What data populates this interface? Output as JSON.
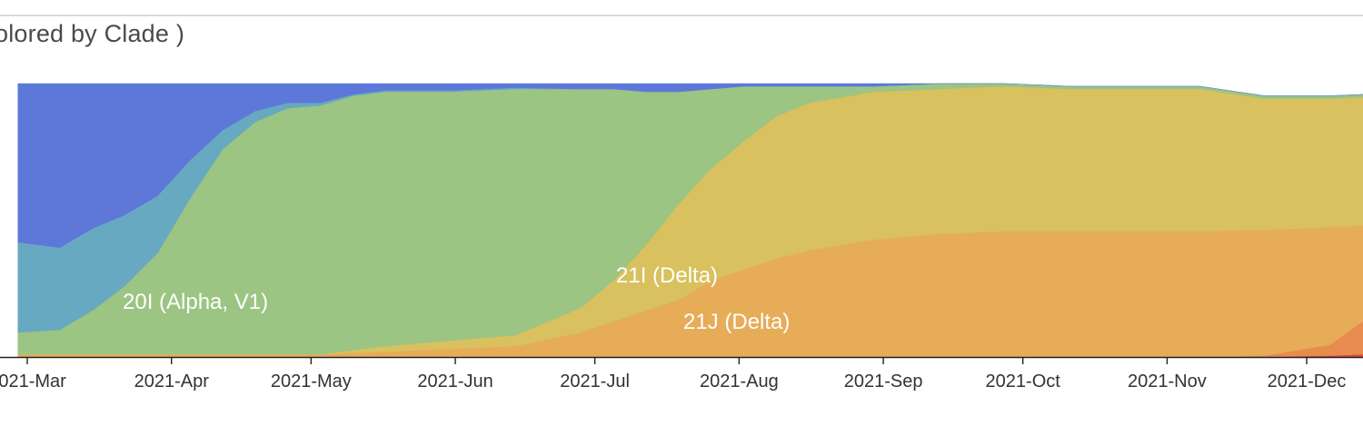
{
  "title": "olored by Clade )",
  "chart_data": {
    "type": "area",
    "stacked": true,
    "normalized": true,
    "title": "olored by Clade )",
    "xlabel": "",
    "ylabel": "",
    "ylim": [
      0,
      1
    ],
    "x": [
      "2021-02-27",
      "2021-03-08",
      "2021-03-15",
      "2021-03-22",
      "2021-03-29",
      "2021-04-05",
      "2021-04-12",
      "2021-04-19",
      "2021-04-26",
      "2021-05-03",
      "2021-05-10",
      "2021-05-17",
      "2021-05-31",
      "2021-06-14",
      "2021-06-28",
      "2021-07-05",
      "2021-07-12",
      "2021-07-19",
      "2021-07-26",
      "2021-08-02",
      "2021-08-09",
      "2021-08-16",
      "2021-08-30",
      "2021-09-13",
      "2021-09-27",
      "2021-10-11",
      "2021-10-25",
      "2021-11-08",
      "2021-11-22",
      "2021-12-06",
      "2021-12-13",
      "2021-12-20"
    ],
    "x_ticks": [
      "2021-Mar",
      "2021-Apr",
      "2021-May",
      "2021-Jun",
      "2021-Jul",
      "2021-Aug",
      "2021-Sep",
      "2021-Oct",
      "2021-Nov",
      "2021-Dec"
    ],
    "series": [
      {
        "name": "",
        "color": "#dc4e34",
        "values": [
          0,
          0,
          0,
          0,
          0,
          0,
          0,
          0,
          0,
          0,
          0,
          0,
          0,
          0,
          0,
          0,
          0,
          0,
          0,
          0,
          0,
          0,
          0,
          0,
          0,
          0,
          0,
          0,
          0,
          0.005,
          0.01,
          0.04
        ]
      },
      {
        "name": "",
        "color": "#e78b4f",
        "values": [
          0,
          0,
          0,
          0,
          0,
          0,
          0,
          0,
          0,
          0,
          0,
          0,
          0,
          0,
          0,
          0,
          0,
          0,
          0,
          0,
          0,
          0,
          0,
          0,
          0,
          0,
          0,
          0,
          0.005,
          0.04,
          0.12,
          0.16
        ]
      },
      {
        "name": "21J (Delta)",
        "color": "#e6ac58",
        "values": [
          0.01,
          0.01,
          0.01,
          0.01,
          0.01,
          0.01,
          0.01,
          0.01,
          0.01,
          0.01,
          0.015,
          0.02,
          0.03,
          0.04,
          0.09,
          0.13,
          0.17,
          0.21,
          0.28,
          0.32,
          0.36,
          0.39,
          0.43,
          0.45,
          0.46,
          0.46,
          0.46,
          0.46,
          0.46,
          0.43,
          0.35,
          0.31
        ]
      },
      {
        "name": "21I (Delta)",
        "color": "#d8c15e",
        "values": [
          0,
          0,
          0,
          0,
          0,
          0,
          0,
          0,
          0,
          0,
          0.01,
          0.02,
          0.03,
          0.04,
          0.09,
          0.15,
          0.24,
          0.35,
          0.41,
          0.47,
          0.52,
          0.54,
          0.54,
          0.53,
          0.53,
          0.52,
          0.52,
          0.52,
          0.48,
          0.47,
          0.47,
          0.45
        ]
      },
      {
        "name": "20I (Alpha, V1)",
        "color": "#9cc483",
        "values": [
          0.08,
          0.09,
          0.16,
          0.25,
          0.37,
          0.57,
          0.75,
          0.85,
          0.9,
          0.91,
          0.93,
          0.93,
          0.91,
          0.9,
          0.8,
          0.7,
          0.56,
          0.41,
          0.29,
          0.2,
          0.11,
          0.06,
          0.02,
          0.02,
          0.01,
          0.01,
          0.01,
          0.01,
          0.01,
          0.01,
          0.01,
          0.005
        ]
      },
      {
        "name": "",
        "color": "#68a9c2",
        "values": [
          0.33,
          0.3,
          0.3,
          0.26,
          0.21,
          0.14,
          0.07,
          0.04,
          0.02,
          0.01,
          0.005,
          0.005,
          0.005,
          0.005,
          0,
          0,
          0,
          0,
          0,
          0,
          0,
          0,
          0,
          0,
          0,
          0,
          0,
          0,
          0,
          0,
          0,
          0
        ]
      },
      {
        "name": "",
        "color": "#5d78d9",
        "values": [
          0.58,
          0.6,
          0.53,
          0.48,
          0.41,
          0.28,
          0.17,
          0.1,
          0.07,
          0.07,
          0.04,
          0.025,
          0.025,
          0.015,
          0.02,
          0.02,
          0.03,
          0.03,
          0.02,
          0.01,
          0.01,
          0.01,
          0.01,
          0,
          0,
          0,
          0,
          0,
          0,
          0,
          0,
          0
        ]
      }
    ]
  }
}
